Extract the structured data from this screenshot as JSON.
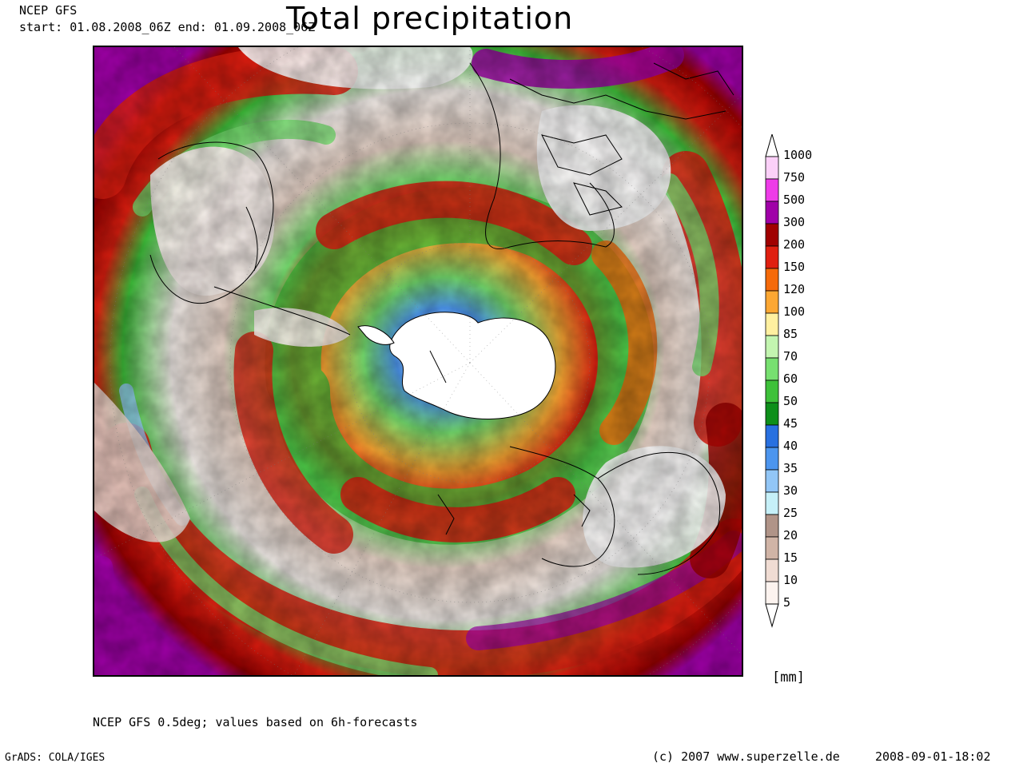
{
  "header": {
    "model": "NCEP GFS",
    "period": "start: 01.08.2008_06Z  end: 01.09.2008_06Z",
    "title": "Total precipitation"
  },
  "legend": {
    "unit": "[mm]",
    "levels": [
      "1000",
      "750",
      "500",
      "300",
      "200",
      "150",
      "120",
      "100",
      "85",
      "70",
      "60",
      "50",
      "45",
      "40",
      "35",
      "30",
      "25",
      "20",
      "15",
      "10",
      "5"
    ],
    "colors": [
      "#fbd0f8",
      "#ee3ce8",
      "#a000a8",
      "#a00000",
      "#e01f10",
      "#f56a0a",
      "#fca733",
      "#fff0a0",
      "#c3f5b0",
      "#77e070",
      "#3ec13a",
      "#0e8f1a",
      "#2870e0",
      "#4c95ee",
      "#92c6f6",
      "#c6f0f8",
      "#b09488",
      "#d0b4a6",
      "#f0dcd3",
      "#fcf3ef"
    ]
  },
  "footer": {
    "note": "NCEP GFS 0.5deg; values based on 6h-forecasts",
    "software": "GrADS: COLA/IGES",
    "copyright": "(c) 2007 www.superzelle.de",
    "timestamp": "2008-09-01-18:02"
  }
}
